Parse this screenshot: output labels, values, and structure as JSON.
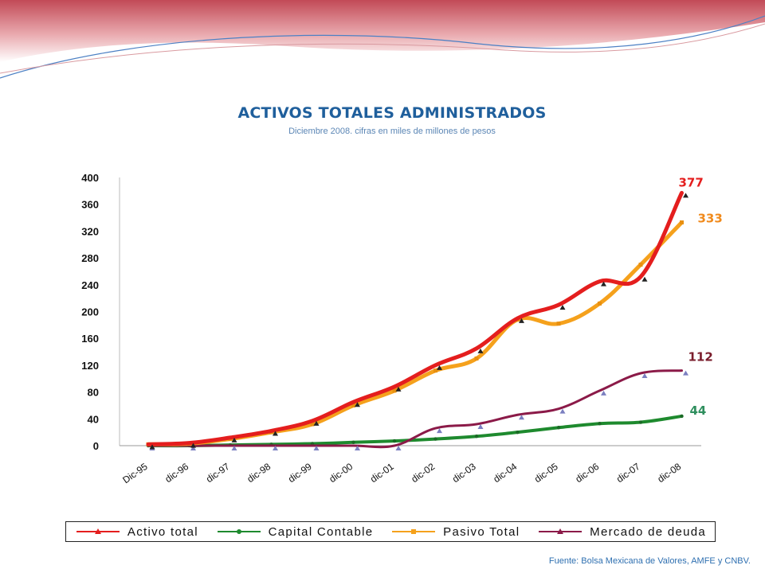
{
  "chart_data": {
    "type": "line",
    "title": "ACTIVOS TOTALES ADMINISTRADOS",
    "subtitle": "Diciembre 2008. cifras en miles de millones de pesos",
    "categories": [
      "Dic-95",
      "dic-96",
      "dic-97",
      "dic-98",
      "dic-99",
      "dic-00",
      "dic-01",
      "dic-02",
      "dic-03",
      "dic-04",
      "dic-05",
      "dic-06",
      "dic-07",
      "dic-08"
    ],
    "ylim": [
      0,
      400
    ],
    "yticks": [
      "0",
      "40",
      "80",
      "120",
      "160",
      "200",
      "240",
      "280",
      "320",
      "360",
      "400"
    ],
    "series": [
      {
        "name": "Activo total",
        "color": "#e41e1e",
        "marker": "triangle",
        "values": [
          2,
          4,
          12,
          22,
          37,
          65,
          88,
          120,
          145,
          190,
          210,
          245,
          252,
          377
        ]
      },
      {
        "name": "Capital Contable",
        "color": "#1e8a2e",
        "marker": "circle",
        "values": [
          0,
          0,
          1,
          2,
          3,
          5,
          7,
          10,
          14,
          20,
          27,
          33,
          35,
          44
        ]
      },
      {
        "name": "Pasivo Total",
        "color": "#f5a11c",
        "marker": "square",
        "values": [
          2,
          3,
          10,
          20,
          32,
          60,
          82,
          112,
          130,
          188,
          182,
          212,
          270,
          333
        ]
      },
      {
        "name": "Mercado de deuda",
        "color": "#8b1a48",
        "marker": "triangle",
        "values": [
          0,
          0,
          0,
          0,
          0,
          0,
          0,
          26,
          32,
          46,
          55,
          82,
          108,
          112
        ]
      }
    ],
    "end_labels": [
      {
        "text": "377",
        "series": 0,
        "color": "#e41e1e"
      },
      {
        "text": "333",
        "series": 2,
        "color": "#f08a1c"
      },
      {
        "text": "112",
        "series": 3,
        "color": "#7a1d2c"
      },
      {
        "text": "44",
        "series": 1,
        "color": "#2f8f5e"
      }
    ],
    "legend_position": "bottom",
    "grid": false
  },
  "footer": {
    "source": "Fuente: Bolsa Mexicana de Valores,  AMFE y CNBV."
  }
}
